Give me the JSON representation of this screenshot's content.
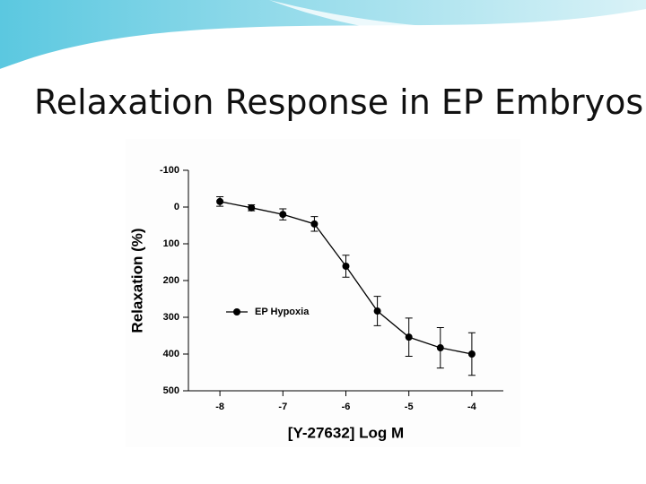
{
  "page_title": "Relaxation Response in EP Embryos",
  "chart_data": {
    "type": "line",
    "x_label": "[Y-27632] Log M",
    "y_label": "Relaxation (%)",
    "x": [
      -8,
      -7.5,
      -7,
      -6.5,
      -6,
      -5.5,
      -5,
      -4.5,
      -4
    ],
    "xlim": [
      -8.5,
      -3.5
    ],
    "xticks": [
      -8,
      -7,
      -6,
      -5,
      -4
    ],
    "ylim": [
      -100,
      500
    ],
    "yticks": [
      -100,
      0,
      100,
      200,
      300,
      400,
      500
    ],
    "y_inverted": true,
    "legend": "center-left",
    "series": [
      {
        "name": "EP Hypoxia",
        "color": "#000000",
        "values": [
          -15,
          2,
          20,
          46,
          161,
          283,
          354,
          383,
          400
        ],
        "errors": [
          13,
          8,
          15,
          20,
          30,
          40,
          52,
          55,
          58
        ]
      }
    ]
  }
}
